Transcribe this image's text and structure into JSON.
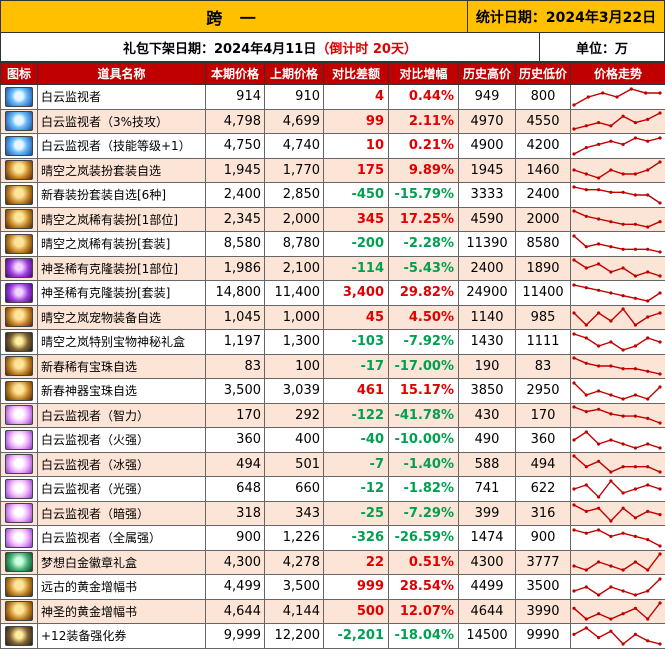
{
  "header": {
    "title": "跨 一",
    "stat_date": "统计日期：2024年3月22日",
    "offline_prefix": "礼包下架日期：2024年4月11日",
    "offline_countdown": "（倒计时 20天）",
    "unit": "单位：万"
  },
  "columns": [
    "图标",
    "道具名称",
    "本期价格",
    "上期价格",
    "对比差额",
    "对比增幅",
    "历史高价",
    "历史低价",
    "价格走势"
  ],
  "colors": {
    "header_bg": "#ffc000",
    "column_header_bg": "#c00000",
    "alt_row_bg": "#fce4d6",
    "increase": "#e00000",
    "decrease": "#00a050",
    "trend_line": "#c00000"
  },
  "rows": [
    {
      "icon": "blue-crystal-icon",
      "name": "白云监视者",
      "cur": "914",
      "prev": "910",
      "diff": "4",
      "pct": "0.44%",
      "high": "949",
      "low": "800",
      "trend": [
        3,
        5,
        6,
        5,
        7,
        6,
        6
      ]
    },
    {
      "icon": "blue-crystal-icon",
      "name": "白云监视者（3%技攻）",
      "cur": "4,798",
      "prev": "4,699",
      "diff": "99",
      "pct": "2.11%",
      "high": "4970",
      "low": "4550",
      "trend": [
        3,
        4,
        5,
        4,
        7,
        5,
        6,
        8
      ]
    },
    {
      "icon": "blue-crystal-icon",
      "name": "白云监视者（技能等级+1）",
      "cur": "4,750",
      "prev": "4,740",
      "diff": "10",
      "pct": "0.21%",
      "high": "4900",
      "low": "4200",
      "trend": [
        2,
        4,
        5,
        6,
        5,
        7,
        6,
        7
      ]
    },
    {
      "icon": "gold-costume-icon",
      "name": "晴空之岚装扮套装自选",
      "cur": "1,945",
      "prev": "1,770",
      "diff": "175",
      "pct": "9.89%",
      "high": "1945",
      "low": "1460",
      "trend": [
        5,
        4,
        3,
        5,
        4,
        4,
        5,
        7
      ]
    },
    {
      "icon": "gold-costume-icon",
      "name": "新春装扮套装自选[6种]",
      "cur": "2,400",
      "prev": "2,850",
      "diff": "-450",
      "pct": "-15.79%",
      "high": "3333",
      "low": "2400",
      "trend": [
        8,
        7,
        7,
        6,
        6,
        5,
        5,
        2
      ]
    },
    {
      "icon": "gold-costume-icon",
      "name": "晴空之岚稀有装扮[1部位]",
      "cur": "2,345",
      "prev": "2,000",
      "diff": "345",
      "pct": "17.25%",
      "high": "4590",
      "low": "2000",
      "trend": [
        8,
        6,
        5,
        4,
        3,
        3,
        2,
        4
      ]
    },
    {
      "icon": "gold-costume-icon",
      "name": "晴空之岚稀有装扮[套装]",
      "cur": "8,580",
      "prev": "8,780",
      "diff": "-200",
      "pct": "-2.28%",
      "high": "11390",
      "low": "8580",
      "trend": [
        8,
        4,
        5,
        4,
        3,
        3,
        3,
        2
      ]
    },
    {
      "icon": "purple-costume-icon",
      "name": "神圣稀有克隆装扮[1部位]",
      "cur": "1,986",
      "prev": "2,100",
      "diff": "-114",
      "pct": "-5.43%",
      "high": "2400",
      "low": "1890",
      "trend": [
        7,
        5,
        6,
        4,
        5,
        3,
        4,
        3
      ]
    },
    {
      "icon": "purple-costume-icon",
      "name": "神圣稀有克隆装扮[套装]",
      "cur": "14,800",
      "prev": "11,400",
      "diff": "3,400",
      "pct": "29.82%",
      "high": "24900",
      "low": "11400",
      "trend": [
        8,
        7,
        6,
        5,
        4,
        3,
        2,
        5
      ]
    },
    {
      "icon": "gold-pet-icon",
      "name": "晴空之岚宠物装备自选",
      "cur": "1,045",
      "prev": "1,000",
      "diff": "45",
      "pct": "4.50%",
      "high": "1140",
      "low": "985",
      "trend": [
        6,
        3,
        6,
        4,
        7,
        3,
        5,
        6
      ]
    },
    {
      "icon": "dark-chest-icon",
      "name": "晴空之岚特别宝物神秘礼盒",
      "cur": "1,197",
      "prev": "1,300",
      "diff": "-103",
      "pct": "-7.92%",
      "high": "1430",
      "low": "1111",
      "trend": [
        7,
        6,
        4,
        5,
        3,
        4,
        6,
        5
      ]
    },
    {
      "icon": "gold-costume-icon",
      "name": "新春稀有宝珠自选",
      "cur": "83",
      "prev": "100",
      "diff": "-17",
      "pct": "-17.00%",
      "high": "190",
      "low": "83",
      "trend": [
        8,
        6,
        5,
        5,
        4,
        4,
        3,
        2
      ]
    },
    {
      "icon": "gold-costume-icon",
      "name": "新春神器宝珠自选",
      "cur": "3,500",
      "prev": "3,039",
      "diff": "461",
      "pct": "15.17%",
      "high": "3850",
      "low": "2950",
      "trend": [
        7,
        4,
        5,
        4,
        3,
        4,
        3,
        6
      ]
    },
    {
      "icon": "pink-orb-icon",
      "name": "白云监视者（智力）",
      "cur": "170",
      "prev": "292",
      "diff": "-122",
      "pct": "-41.78%",
      "high": "430",
      "low": "170",
      "trend": [
        8,
        6,
        7,
        5,
        4,
        4,
        3,
        1
      ]
    },
    {
      "icon": "pink-orb-icon",
      "name": "白云监视者（火强）",
      "cur": "360",
      "prev": "400",
      "diff": "-40",
      "pct": "-10.00%",
      "high": "490",
      "low": "360",
      "trend": [
        6,
        8,
        5,
        6,
        5,
        4,
        5,
        4
      ]
    },
    {
      "icon": "pink-orb-icon",
      "name": "白云监视者（冰强）",
      "cur": "494",
      "prev": "501",
      "diff": "-7",
      "pct": "-1.40%",
      "high": "588",
      "low": "494",
      "trend": [
        7,
        5,
        6,
        4,
        5,
        5,
        5,
        4
      ]
    },
    {
      "icon": "pink-orb-icon",
      "name": "白云监视者（光强）",
      "cur": "648",
      "prev": "660",
      "diff": "-12",
      "pct": "-1.82%",
      "high": "741",
      "low": "622",
      "trend": [
        5,
        6,
        3,
        7,
        4,
        5,
        6,
        5
      ]
    },
    {
      "icon": "pink-orb-icon",
      "name": "白云监视者（暗强）",
      "cur": "318",
      "prev": "343",
      "diff": "-25",
      "pct": "-7.29%",
      "high": "399",
      "low": "316",
      "trend": [
        7,
        5,
        6,
        2,
        6,
        3,
        5,
        4
      ]
    },
    {
      "icon": "pink-orb-icon",
      "name": "白云监视者（全属强）",
      "cur": "900",
      "prev": "1,226",
      "diff": "-326",
      "pct": "-26.59%",
      "high": "1474",
      "low": "900",
      "trend": [
        7,
        6,
        7,
        5,
        6,
        5,
        4,
        2
      ]
    },
    {
      "icon": "green-badge-icon",
      "name": "梦想白金徽章礼盒",
      "cur": "4,300",
      "prev": "4,278",
      "diff": "22",
      "pct": "0.51%",
      "high": "4300",
      "low": "3777",
      "trend": [
        4,
        3,
        5,
        4,
        3,
        5,
        3,
        7
      ]
    },
    {
      "icon": "gold-book-icon",
      "name": "远古的黄金增幅书",
      "cur": "4,499",
      "prev": "3,500",
      "diff": "999",
      "pct": "28.54%",
      "high": "4499",
      "low": "3500",
      "trend": [
        4,
        5,
        3,
        5,
        4,
        3,
        4,
        7
      ]
    },
    {
      "icon": "gold-book-icon",
      "name": "神圣的黄金增幅书",
      "cur": "4,644",
      "prev": "4,144",
      "diff": "500",
      "pct": "12.07%",
      "high": "4644",
      "low": "3990",
      "trend": [
        5,
        3,
        4,
        3,
        4,
        5,
        3,
        6
      ]
    },
    {
      "icon": "dark-ticket-icon",
      "name": "+12装备强化券",
      "cur": "9,999",
      "prev": "12,200",
      "diff": "-2,201",
      "pct": "-18.04%",
      "high": "14500",
      "low": "9990",
      "trend": [
        6,
        8,
        5,
        7,
        3,
        6,
        4,
        3
      ]
    }
  ]
}
